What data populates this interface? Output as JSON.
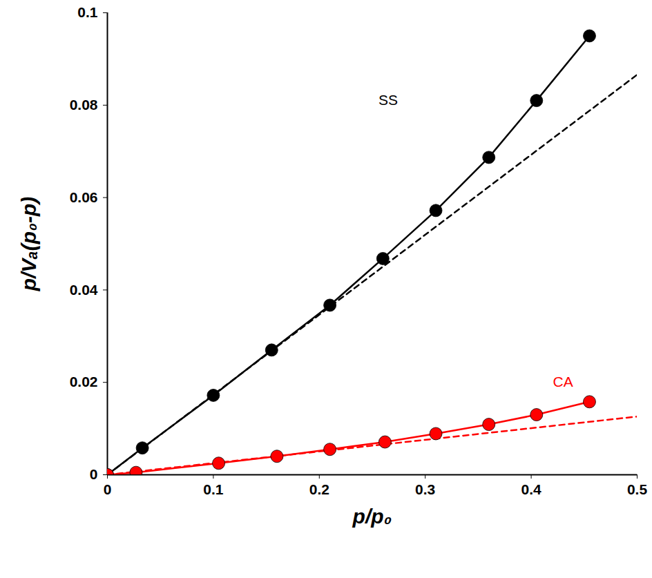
{
  "chart_data": {
    "type": "line",
    "x_label": "p/p₀",
    "y_label": "p/Vₐ(p₀-p)",
    "xlim": [
      0,
      0.5
    ],
    "xticks": [
      0,
      0.1,
      0.2,
      0.3,
      0.4,
      0.5
    ],
    "ylim": [
      0,
      0.1
    ],
    "yticks": [
      0,
      0.02,
      0.04,
      0.06,
      0.08,
      0.1
    ],
    "grid": false,
    "series": [
      {
        "name": "SS",
        "color": "#000000",
        "marker": "circle",
        "line_style": "solid",
        "x": [
          0,
          0.033,
          0.1,
          0.155,
          0.21,
          0.26,
          0.31,
          0.36,
          0.405,
          0.455
        ],
        "values": [
          0,
          0.0058,
          0.0172,
          0.027,
          0.0367,
          0.0468,
          0.0572,
          0.0687,
          0.081,
          0.095
        ],
        "fit": {
          "line_style": "dashed",
          "x": [
            0,
            0.5
          ],
          "values": [
            0,
            0.0866
          ]
        }
      },
      {
        "name": "CA",
        "color": "#ff0000",
        "marker": "circle",
        "line_style": "solid",
        "x": [
          0,
          0.027,
          0.105,
          0.16,
          0.21,
          0.262,
          0.31,
          0.36,
          0.405,
          0.455
        ],
        "values": [
          0,
          0.0005,
          0.0025,
          0.004,
          0.0055,
          0.0071,
          0.0089,
          0.0109,
          0.013,
          0.0158
        ],
        "fit": {
          "line_style": "dashed",
          "x": [
            0,
            0.5
          ],
          "values": [
            0,
            0.0126
          ]
        }
      }
    ],
    "annotations": [
      {
        "text": "SS",
        "x": 0.265,
        "y": 0.081
      },
      {
        "text": "CA",
        "x": 0.43,
        "y": 0.02
      }
    ]
  }
}
